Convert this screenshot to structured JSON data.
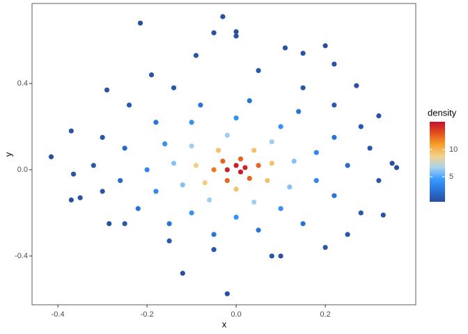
{
  "chart_data": {
    "type": "scatter",
    "x_label": "x",
    "y_label": "y",
    "xlim": [
      -0.458,
      0.403
    ],
    "ylim": [
      -0.626,
      0.771
    ],
    "xticks": [
      -0.4,
      -0.2,
      {
        "value": 0,
        "label": "0.0"
      },
      0.2
    ],
    "yticks": [
      -0.4,
      {
        "value": 0,
        "label": "0.0"
      },
      0.4
    ],
    "grid": false,
    "colorbar": {
      "title": "density",
      "lim": [
        0.4,
        15.1
      ],
      "ticks": [
        5,
        10
      ],
      "colors": [
        "#2a4c9c",
        "#2874d8",
        "#3a9cff",
        "#a9d3ee",
        "#f3d28a",
        "#f5a028",
        "#e4501c",
        "#c4102c"
      ]
    },
    "series": [
      {
        "x": [
          -0.215,
          -0.03,
          0.0,
          -0.05,
          -0.415,
          0.35,
          0.36,
          -0.12,
          -0.02,
          0.32,
          0.2,
          0.27,
          -0.29,
          0.33,
          -0.37,
          -0.285,
          0.1,
          0.08,
          -0.37,
          -0.35,
          -0.365,
          0.15,
          0.11,
          -0.09,
          0.0,
          -0.19,
          0.22,
          0.28,
          0.3,
          0.32,
          0.28,
          0.25,
          0.2,
          -0.05,
          -0.15,
          -0.25,
          -0.3,
          -0.32,
          -0.3,
          -0.24,
          -0.14,
          0.05,
          0.15,
          0.22,
          -0.25,
          -0.26,
          -0.22,
          -0.15,
          -0.05,
          0.05,
          0.15,
          0.22,
          0.25,
          0.22,
          0.14,
          0.03,
          -0.08,
          -0.18,
          -0.2,
          -0.18,
          -0.1,
          0.0,
          0.1,
          0.18,
          0.18,
          0.1,
          0.0,
          -0.1,
          -0.16,
          -0.14,
          -0.12,
          -0.06,
          0.04,
          0.12,
          0.13,
          0.08,
          -0.02,
          -0.1,
          -0.09,
          -0.07,
          0.0,
          0.07,
          0.08,
          0.04,
          -0.04,
          -0.05,
          -0.02,
          0.03,
          0.05,
          0.01,
          -0.03,
          -0.02,
          0.01,
          0.0,
          0.02
        ],
        "y": [
          0.68,
          0.71,
          0.64,
          0.635,
          0.06,
          0.03,
          0.01,
          -0.48,
          -0.575,
          0.25,
          0.575,
          0.39,
          0.37,
          -0.21,
          -0.14,
          -0.25,
          -0.4,
          -0.4,
          0.18,
          -0.13,
          -0.02,
          0.54,
          0.565,
          0.53,
          0.62,
          0.44,
          0.49,
          0.2,
          0.1,
          -0.05,
          -0.2,
          -0.3,
          -0.36,
          -0.37,
          -0.33,
          -0.25,
          -0.1,
          0.02,
          0.15,
          0.3,
          0.38,
          0.46,
          0.38,
          0.3,
          0.1,
          -0.05,
          -0.18,
          -0.25,
          -0.3,
          -0.28,
          -0.25,
          -0.12,
          0.02,
          0.15,
          0.27,
          0.32,
          0.3,
          0.22,
          0.0,
          -0.1,
          -0.2,
          -0.22,
          -0.18,
          -0.05,
          0.08,
          0.2,
          0.24,
          0.22,
          0.12,
          0.03,
          -0.07,
          -0.14,
          -0.15,
          -0.08,
          0.04,
          0.13,
          0.16,
          0.11,
          0.02,
          -0.06,
          -0.09,
          -0.05,
          0.03,
          0.09,
          0.09,
          0.0,
          -0.05,
          -0.04,
          0.02,
          0.05,
          0.04,
          0.0,
          -0.01,
          0.02,
          0.01
        ],
        "density": [
          0.5,
          0.5,
          0.6,
          0.6,
          0.5,
          0.6,
          0.5,
          0.5,
          0.5,
          0.6,
          0.5,
          0.6,
          0.6,
          0.6,
          0.6,
          0.6,
          0.7,
          0.7,
          0.7,
          0.7,
          0.7,
          0.7,
          0.7,
          0.8,
          0.7,
          0.8,
          0.7,
          0.9,
          1,
          1,
          1,
          0.9,
          0.9,
          1,
          1,
          1,
          1,
          1,
          1,
          1,
          1,
          1,
          1,
          1,
          2,
          2,
          2.5,
          2.5,
          2.5,
          2.5,
          2.5,
          2.5,
          2,
          2.5,
          2.5,
          2.5,
          2.5,
          2.5,
          3.5,
          3.5,
          4,
          4,
          4,
          3.5,
          3.5,
          4,
          4,
          4,
          4,
          6,
          6,
          6.5,
          6.5,
          6,
          6,
          6.5,
          6.5,
          6.5,
          9,
          9,
          9.5,
          9.5,
          9.5,
          9.5,
          9.5,
          12,
          12.5,
          12.5,
          12.5,
          12.5,
          12.5,
          14.5,
          14.8,
          14.6,
          14.5
        ]
      }
    ]
  }
}
